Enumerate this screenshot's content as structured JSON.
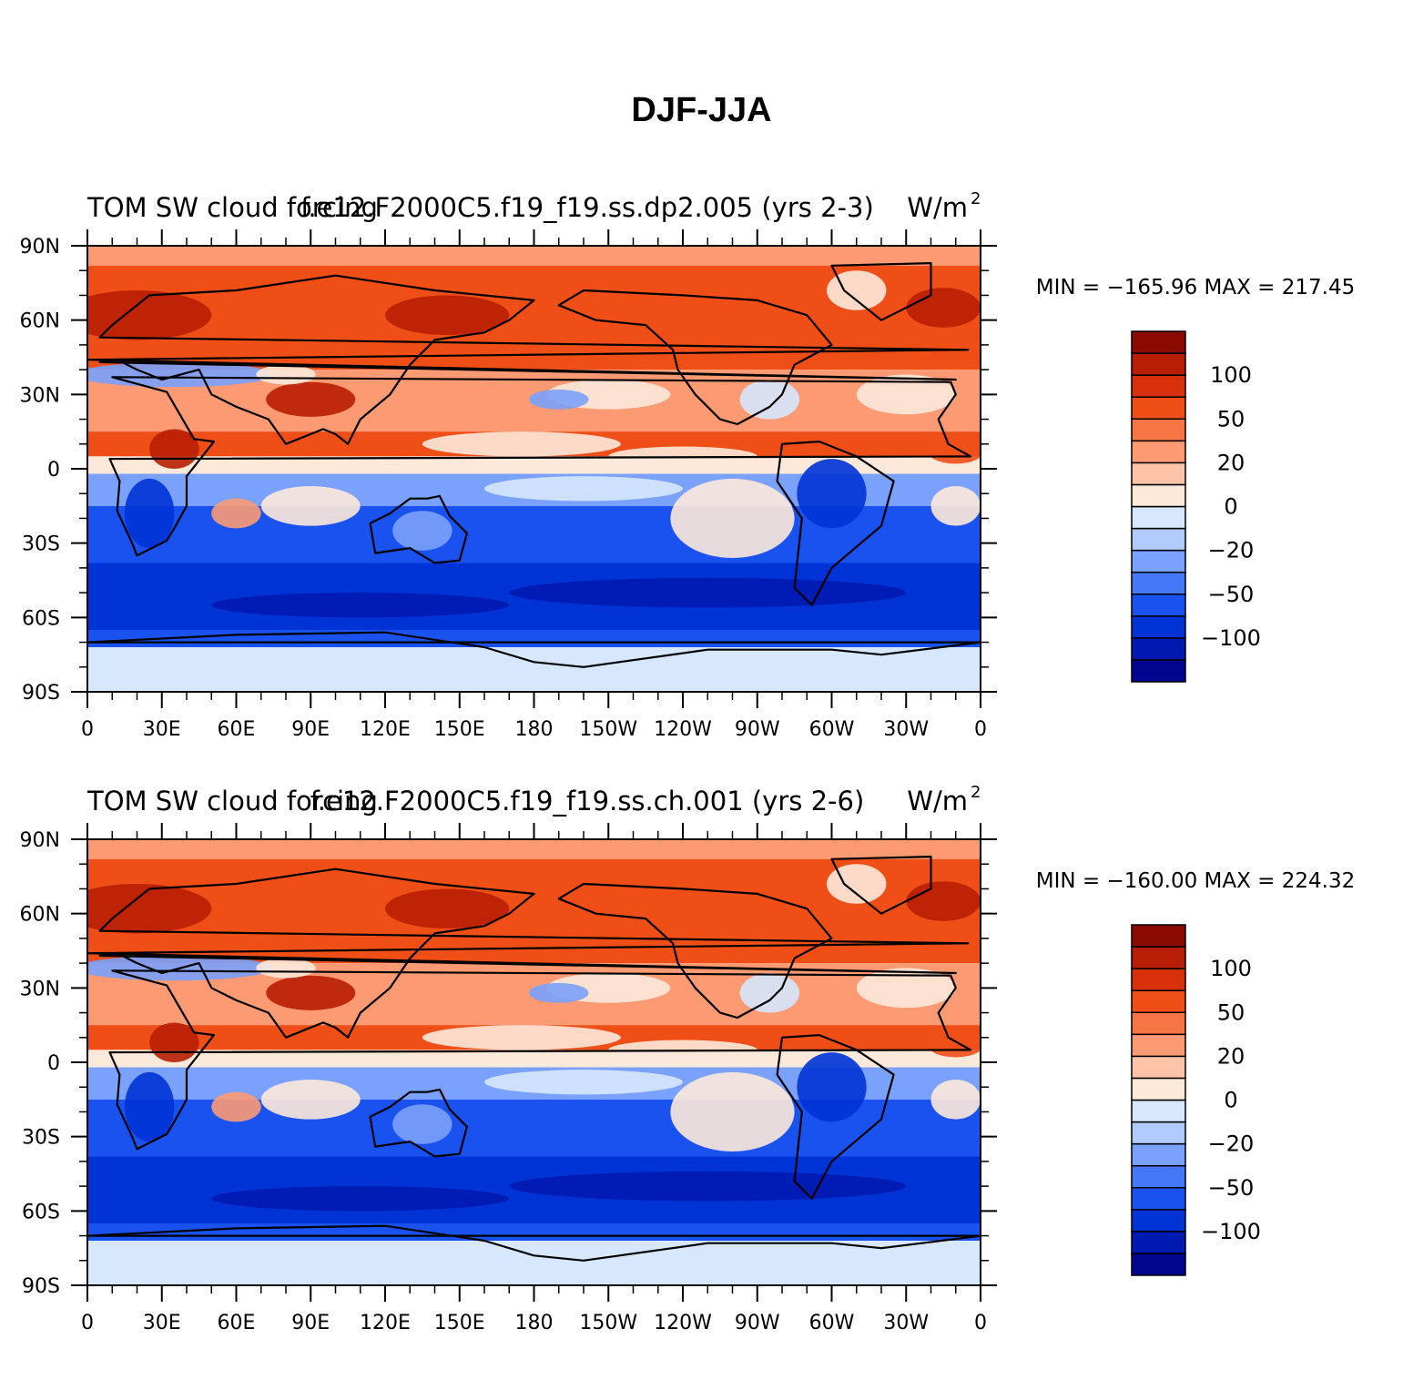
{
  "title": "DJF-JJA",
  "panels": [
    {
      "left_title": "TOM SW cloud forcing",
      "center_title": "f.e12.F2000C5.f19_f19.ss.dp2.005 (yrs 2-3)",
      "right_title": "W/m",
      "right_title_sup": "2",
      "stats": "MIN = −165.96 MAX = 217.45"
    },
    {
      "left_title": "TOM SW cloud forcing",
      "center_title": "f.e12.F2000C5.f19_f19.ss.ch.001 (yrs 2-6)",
      "right_title": "W/m",
      "right_title_sup": "2",
      "stats": "MIN = −160.00 MAX = 224.32"
    }
  ],
  "lat_ticks": [
    "90N",
    "60N",
    "30N",
    "0",
    "30S",
    "60S",
    "90S"
  ],
  "lon_ticks": [
    "0",
    "30E",
    "60E",
    "90E",
    "120E",
    "150E",
    "180",
    "150W",
    "120W",
    "90W",
    "60W",
    "30W",
    "0"
  ],
  "colorbar": {
    "colors": [
      "#00058f",
      "#0019b0",
      "#0033d6",
      "#1a52f0",
      "#4478f7",
      "#7aa1fb",
      "#b1cbfd",
      "#d6e7fe",
      "#fde9da",
      "#fdc4a8",
      "#fb9a73",
      "#f77444",
      "#ef4f17",
      "#d83008",
      "#b81e04",
      "#8a0a00"
    ],
    "labels": [
      {
        "text": "−100",
        "after_index": 1
      },
      {
        "text": "−50",
        "after_index": 3
      },
      {
        "text": "−20",
        "after_index": 5
      },
      {
        "text": "0",
        "after_index": 7
      },
      {
        "text": "20",
        "after_index": 9
      },
      {
        "text": "50",
        "after_index": 11
      },
      {
        "text": "100",
        "after_index": 13
      }
    ]
  },
  "field_palette": {
    "ice": "#d6e7fe",
    "deep_blue": "#0033d6",
    "mid_blue": "#1a52f0",
    "light_blue": "#7aa1fb",
    "pale": "#fde9da",
    "salmon": "#fb9a73",
    "orange": "#ef4f17",
    "dark_red": "#b81e04"
  }
}
